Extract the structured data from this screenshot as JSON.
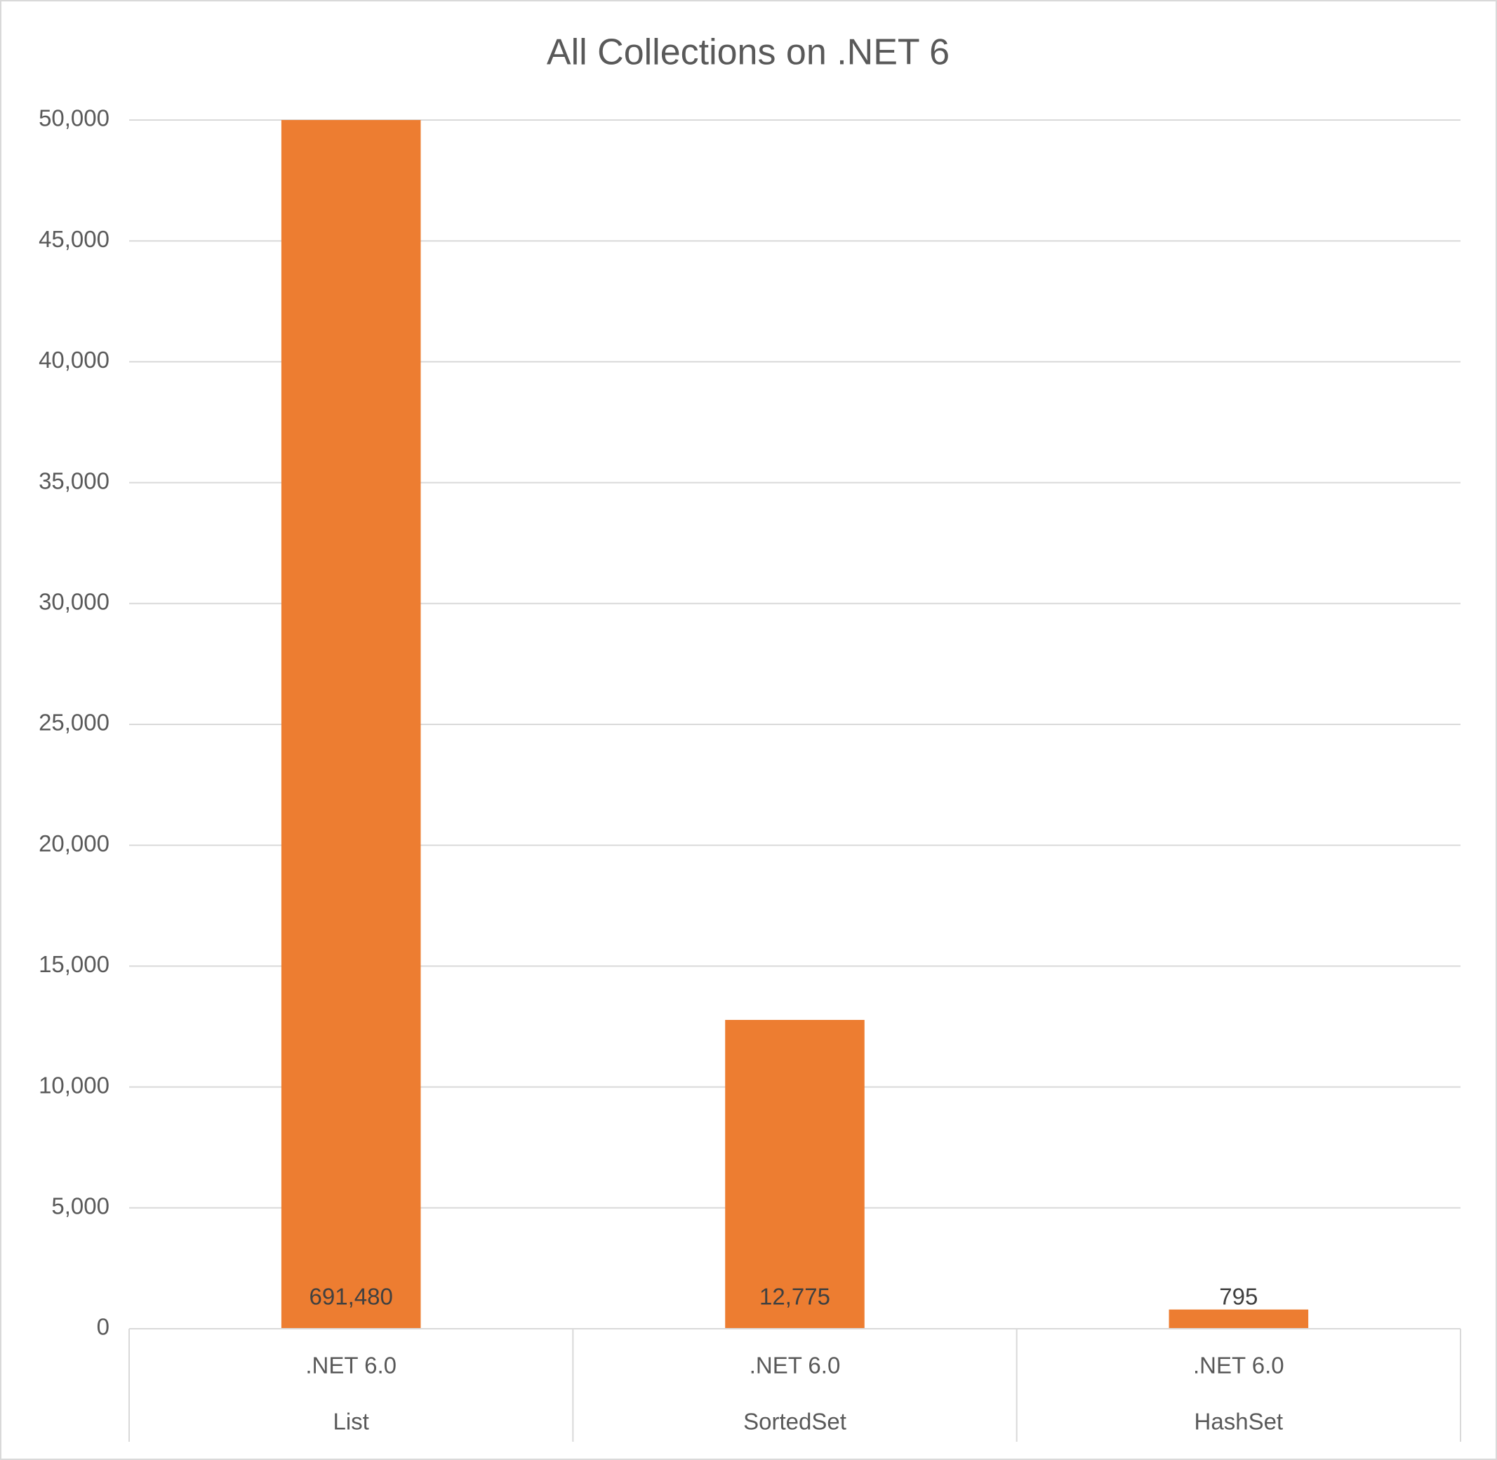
{
  "chart_data": {
    "type": "bar",
    "title": "All Collections on .NET 6",
    "categories": [
      ".NET 6.0",
      ".NET 6.0",
      ".NET 6.0"
    ],
    "groups": [
      "List",
      "SortedSet",
      "HashSet"
    ],
    "values": [
      691480,
      12775,
      795
    ],
    "value_labels": [
      "691,480",
      "12,775",
      "795"
    ],
    "color": "#ed7d31",
    "ylim": [
      0,
      50000
    ],
    "yticks": [
      0,
      {
        "value": 5000,
        "label": "5,000"
      },
      {
        "value": 10000,
        "label": "10,000"
      },
      {
        "value": 15000,
        "label": "15,000"
      },
      {
        "value": 20000,
        "label": "20,000"
      },
      {
        "value": 25000,
        "label": "25,000"
      },
      {
        "value": 30000,
        "label": "30,000"
      },
      {
        "value": 35000,
        "label": "35,000"
      },
      {
        "value": 40000,
        "label": "40,000"
      },
      {
        "value": 45000,
        "label": "45,000"
      },
      {
        "value": 50000,
        "label": "50,000"
      }
    ],
    "grid": true
  }
}
